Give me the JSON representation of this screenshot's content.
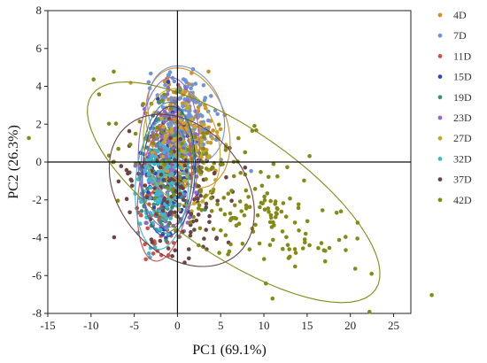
{
  "chart_data": {
    "type": "scatter",
    "xlabel": "PC1 (69.1%)",
    "ylabel": "PC2 (26.3%)",
    "xlim": [
      -15,
      27
    ],
    "ylim": [
      -8,
      8
    ],
    "x_ticks": [
      -15,
      -10,
      -5,
      0,
      5,
      10,
      15,
      20,
      25
    ],
    "y_ticks": [
      8,
      6,
      4,
      2,
      0,
      -2,
      -4,
      -6,
      -8
    ],
    "zero_lines": true,
    "grid": false,
    "legend_position": "right",
    "series": [
      {
        "name": "4D",
        "color": "#d18f2a",
        "ellipse": {
          "cx": 1.2,
          "cy": 1.8,
          "rx": 3.0,
          "ry": 5.0,
          "angle": 75
        }
      },
      {
        "name": "7D",
        "color": "#6f95d6",
        "ellipse": {
          "cx": 1.0,
          "cy": 2.5,
          "rx": 2.5,
          "ry": 4.5,
          "angle": 80
        }
      },
      {
        "name": "11D",
        "color": "#d0504d",
        "ellipse": {
          "cx": -1.5,
          "cy": -1.5,
          "rx": 4.0,
          "ry": 2.8,
          "angle": 60
        }
      },
      {
        "name": "15D",
        "color": "#2e47b8",
        "ellipse": {
          "cx": -1.0,
          "cy": -0.5,
          "rx": 3.5,
          "ry": 3.0,
          "angle": 70
        }
      },
      {
        "name": "19D",
        "color": "#3f8c7a",
        "ellipse": {
          "cx": -1.2,
          "cy": -0.3,
          "rx": 3.5,
          "ry": 3.0,
          "angle": 72
        }
      },
      {
        "name": "23D",
        "color": "#9466c9",
        "ellipse": {
          "cx": -1.0,
          "cy": 0.5,
          "rx": 4.0,
          "ry": 3.5,
          "angle": 74
        }
      },
      {
        "name": "27D",
        "color": "#c6a72b",
        "ellipse": {
          "cx": 0.5,
          "cy": 0.8,
          "rx": 3.0,
          "ry": 4.5,
          "angle": 78
        }
      },
      {
        "name": "32D",
        "color": "#3fb5cf",
        "ellipse": {
          "cx": -1.8,
          "cy": -1.2,
          "rx": 3.5,
          "ry": 3.0,
          "angle": 65
        }
      },
      {
        "name": "37D",
        "color": "#6b4443",
        "ellipse": {
          "cx": 0.5,
          "cy": -1.5,
          "rx": 8.5,
          "ry": 3.8,
          "angle": -10
        }
      },
      {
        "name": "42D",
        "color": "#848a14",
        "ellipse": {
          "cx": 6.5,
          "cy": -1.6,
          "rx": 17.5,
          "ry": 3.8,
          "angle": -15
        }
      }
    ]
  }
}
